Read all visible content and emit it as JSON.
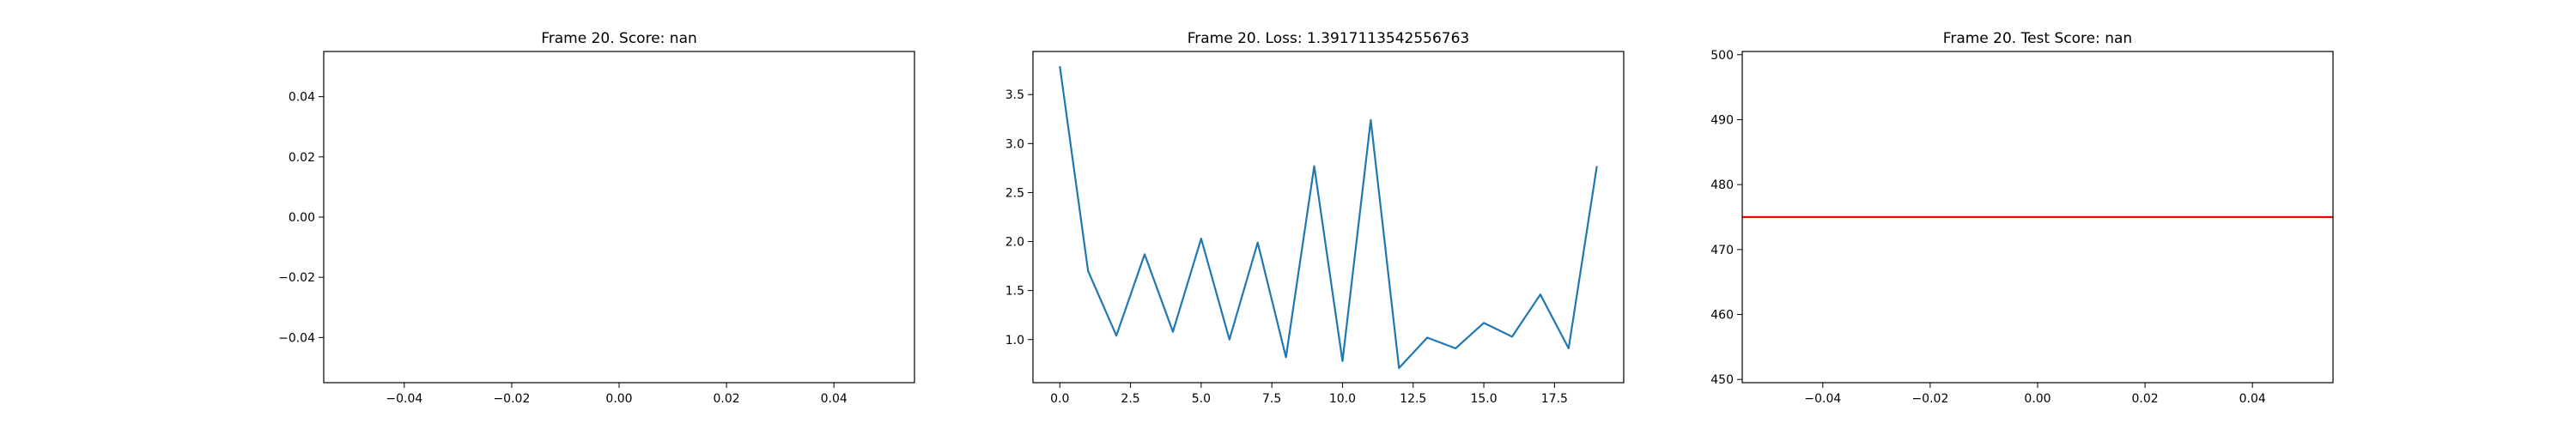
{
  "chart_data": [
    {
      "type": "line",
      "title": "Frame 20. Score: nan",
      "xlabel": "",
      "ylabel": "",
      "xlim": [
        -0.055,
        0.055
      ],
      "ylim": [
        -0.055,
        0.055
      ],
      "xticks": [
        -0.04,
        -0.02,
        0.0,
        0.02,
        0.04
      ],
      "xtick_labels": [
        "−0.04",
        "−0.02",
        "0.00",
        "0.02",
        "0.04"
      ],
      "yticks": [
        0.04,
        0.02,
        0.0,
        -0.02,
        -0.04
      ],
      "ytick_labels": [
        "0.04",
        "0.02",
        "0.00",
        "−0.02",
        "−0.04"
      ],
      "grid": false,
      "series": []
    },
    {
      "type": "line",
      "title": "Frame 20. Loss: 1.3917113542556763",
      "xlabel": "",
      "ylabel": "",
      "xlim": [
        -0.95,
        19.95
      ],
      "ylim": [
        0.56,
        3.94
      ],
      "xticks": [
        0.0,
        2.5,
        5.0,
        7.5,
        10.0,
        12.5,
        15.0,
        17.5
      ],
      "xtick_labels": [
        "0.0",
        "2.5",
        "5.0",
        "7.5",
        "10.0",
        "12.5",
        "15.0",
        "17.5"
      ],
      "yticks": [
        1.0,
        1.5,
        2.0,
        2.5,
        3.0,
        3.5
      ],
      "ytick_labels": [
        "1.0",
        "1.5",
        "2.0",
        "2.5",
        "3.0",
        "3.5"
      ],
      "grid": false,
      "series": [
        {
          "color": "#1f77b4",
          "x": [
            0,
            1,
            2,
            3,
            4,
            5,
            6,
            7,
            8,
            9,
            10,
            11,
            12,
            13,
            14,
            15,
            16,
            17,
            18,
            19
          ],
          "y": [
            3.79,
            1.7,
            1.04,
            1.87,
            1.08,
            2.03,
            1.0,
            1.99,
            0.82,
            2.77,
            0.78,
            3.24,
            0.71,
            1.02,
            0.91,
            1.17,
            1.03,
            1.46,
            0.91,
            2.77
          ]
        }
      ]
    },
    {
      "type": "line",
      "title": "Frame 20. Test Score: nan",
      "xlabel": "",
      "ylabel": "",
      "xlim": [
        -0.055,
        0.055
      ],
      "ylim": [
        449.5,
        500.5
      ],
      "xticks": [
        -0.04,
        -0.02,
        0.0,
        0.02,
        0.04
      ],
      "xtick_labels": [
        "−0.04",
        "−0.02",
        "0.00",
        "0.02",
        "0.04"
      ],
      "yticks": [
        450,
        460,
        470,
        480,
        490,
        500
      ],
      "ytick_labels": [
        "450",
        "460",
        "470",
        "480",
        "490",
        "500"
      ],
      "grid": false,
      "series": [],
      "hlines": [
        {
          "y": 475,
          "color": "#ff0000"
        }
      ]
    }
  ]
}
